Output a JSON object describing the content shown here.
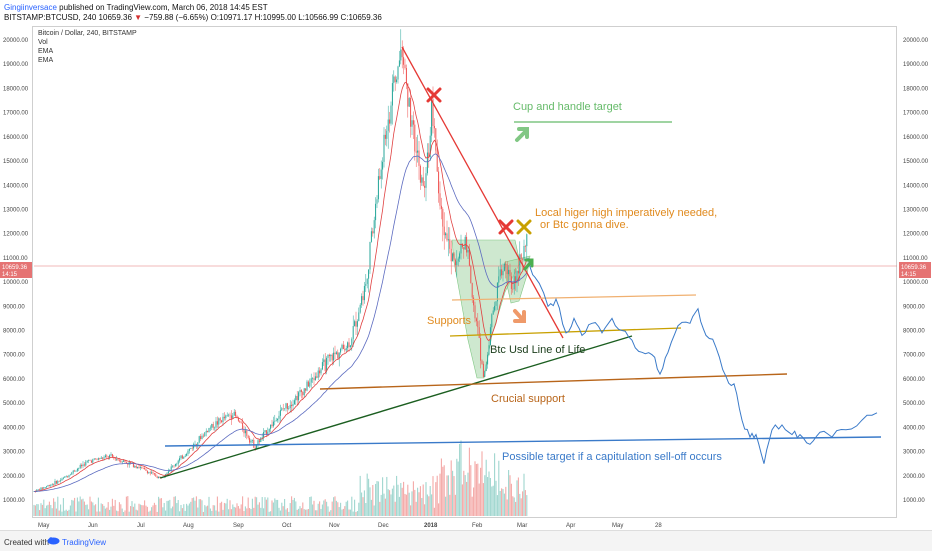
{
  "header": {
    "author": "Gingiinversace",
    "published": "published on TradingView.com, March 06, 2018 14:45 EST",
    "symbol_line_a": "BITSTAMP:BTCUSD, 240 10659.36",
    "down_arrow": "▼",
    "symbol_line_b": "−759.88 (−6.65%) O:10971.17 H:10995.00 L:10566.99 C:10659.36"
  },
  "legend": {
    "title": "Bitcoin / Dollar, 240, BITSTAMP",
    "items": [
      "Vol",
      "EMA",
      "EMA"
    ]
  },
  "price_tag": {
    "value": "10659.36",
    "time": "14:15"
  },
  "annotations": {
    "cup_handle": "Cup and handle target",
    "local_high_1": "Local higer high imperatively needed,",
    "local_high_2": "or Btc gonna dive.",
    "supports": "Supports",
    "line_of_life": "Btc Usd Line of Life",
    "crucial": "Crucial support",
    "capitulation": "Possible target if a capitulation sell-off occurs"
  },
  "footer": {
    "created": "Created with",
    "brand": "TradingView"
  },
  "colors": {
    "candle_up": "#26a69a",
    "candle_down": "#ef5350",
    "ema_fast": "#e04040",
    "ema_slow": "#5c6bc0",
    "cup_fill": "#a5d6a7",
    "downtrend": "#e53935",
    "line_of_life": "#1b5e20",
    "crucial": "#b8651a",
    "support": "#c8a000",
    "support_upper": "#f0b070",
    "capitulation": "#3a7ac9",
    "projection": "#3a7ac9",
    "cup_text": "#66bb6a",
    "orange_text": "#e08a1e",
    "price_line": "#e57373"
  },
  "chart_data": {
    "type": "candlestick",
    "y_ticks": [
      "20000.00",
      "19000.00",
      "18000.00",
      "17000.00",
      "16000.00",
      "15000.00",
      "14000.00",
      "13000.00",
      "12000.00",
      "11000.00",
      "10000.00",
      "9000.00",
      "8000.00",
      "7000.00",
      "6000.00",
      "5000.00",
      "4000.00",
      "3000.00",
      "2000.00",
      "1000.00"
    ],
    "x_ticks": [
      "May",
      "Jun",
      "Jul",
      "Aug",
      "Sep",
      "Oct",
      "Nov",
      "Dec",
      "2018",
      "Feb",
      "Mar",
      "Apr",
      "May",
      "28"
    ],
    "ylim": [
      0,
      20800
    ],
    "grid": false,
    "price_path": [
      [
        "May 2017",
        1350
      ],
      [
        "Jun 2017",
        2600
      ],
      [
        "Jul 2017",
        2400
      ],
      [
        "mid Jul 2017",
        1900
      ],
      [
        "Aug 2017",
        2800
      ],
      [
        "Sep 2017",
        4600
      ],
      [
        "mid Sep 2017",
        3200
      ],
      [
        "Oct 2017",
        4700
      ],
      [
        "Nov 2017",
        6800
      ],
      [
        "late Nov 2017",
        9800
      ],
      [
        "mid Dec 2017",
        19700
      ],
      [
        "late Dec 2017",
        13500
      ],
      [
        "early Jan 2018",
        17200
      ],
      [
        "mid Jan 2018",
        10500
      ],
      [
        "late Jan 2018",
        11800
      ],
      [
        "early Feb 2018",
        6000
      ],
      [
        "mid Feb 2018",
        10800
      ],
      [
        "early Mar 2018",
        11500
      ],
      [
        "Mar 06 2018",
        10659.36
      ]
    ],
    "projection": [
      [
        "Mar 2018",
        11000
      ],
      [
        "mid Mar 2018",
        9000
      ],
      [
        "Apr 2018",
        7900
      ],
      [
        "mid Apr 2018",
        8400
      ],
      [
        "May 2018",
        8000
      ],
      [
        "late May 2018",
        6200
      ],
      [
        "Jun 2018",
        8800
      ],
      [
        "mid Jun 2018",
        6100
      ],
      [
        "early Jul 2018",
        3600
      ],
      [
        "mid Jul 2018",
        2500
      ],
      [
        "late Jul 2018",
        4100
      ],
      [
        "Aug 2018",
        3300
      ],
      [
        "Sep 2018",
        4300
      ],
      [
        "Oct 2018",
        4600
      ]
    ],
    "levels": {
      "supports": [
        9400,
        8000
      ],
      "crucial_support": 5600,
      "capitulation_target": 3500,
      "cup_handle_target": 16700
    }
  }
}
